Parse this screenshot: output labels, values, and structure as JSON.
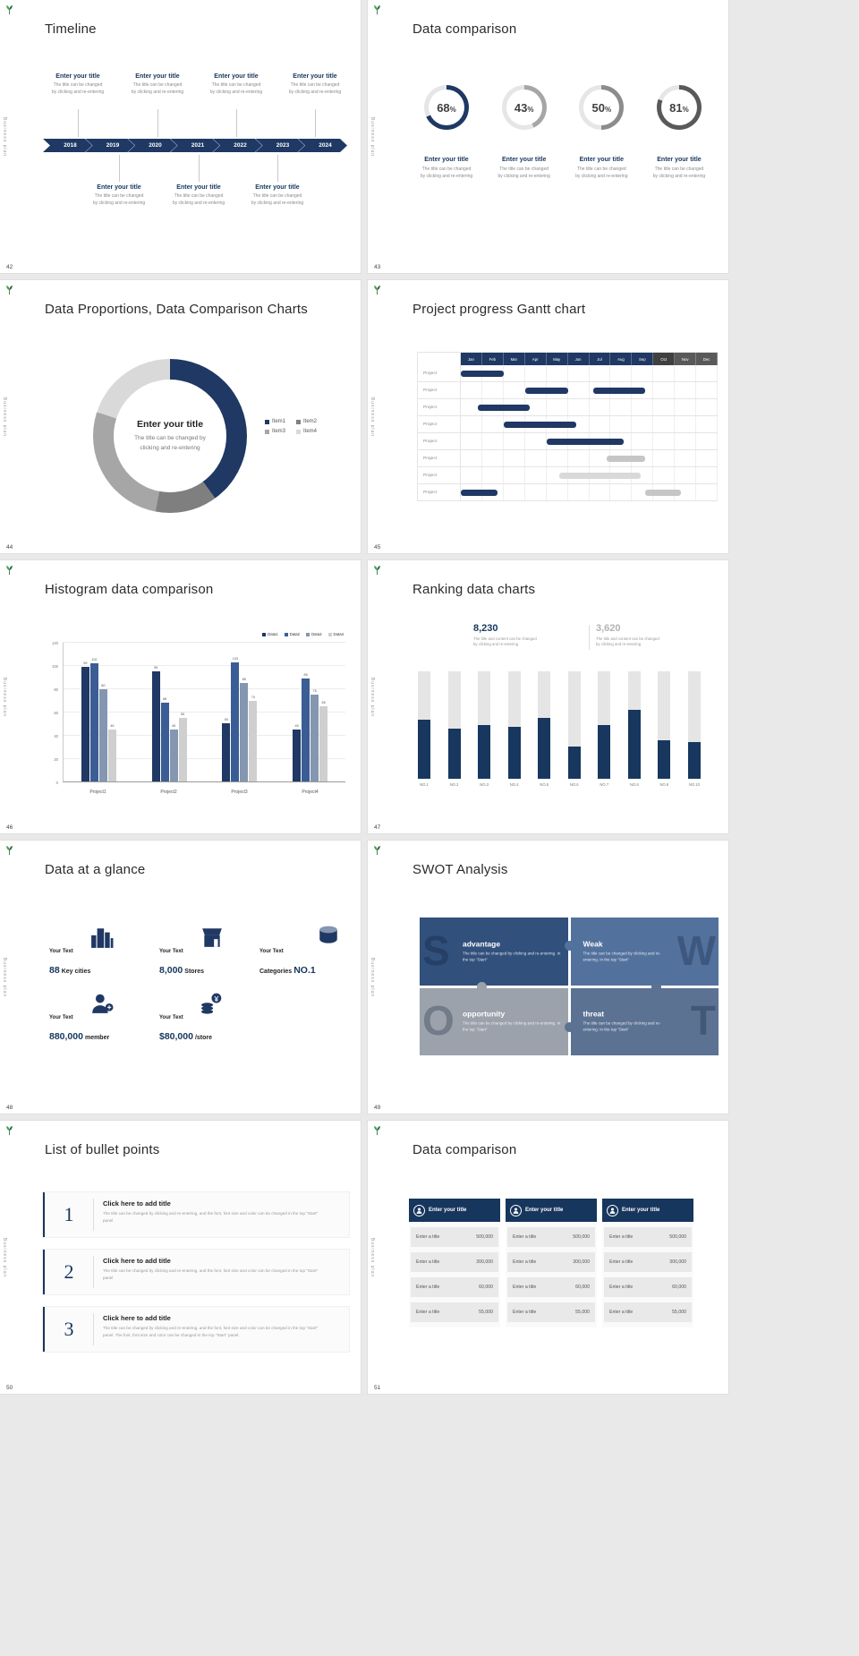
{
  "page": {
    "background_color": "#e9e9e9",
    "accent_color": "#1f3864",
    "brand_vertical_text": "Business plan"
  },
  "slides": [
    {
      "page_number": "42",
      "title": "Timeline",
      "item_title": "Enter your title",
      "item_desc_line1": "The title can be changed",
      "item_desc_line2": "by clicking and re-entering",
      "years": [
        "2018",
        "2019",
        "2020",
        "2021",
        "2022",
        "2023",
        "2024"
      ]
    },
    {
      "page_number": "43",
      "title": "Data comparison",
      "item_title": "Enter your title",
      "item_desc_line1": "The title can be changed",
      "item_desc_line2": "by clicking and re-entering",
      "chart_data": {
        "type": "donut-gauges",
        "values": [
          68,
          43,
          50,
          81
        ],
        "unit": "%",
        "colors": [
          "#1f3864",
          "#a6a6a6",
          "#8c8c8c",
          "#595959"
        ],
        "track_color": "#e6e6e6"
      }
    },
    {
      "page_number": "44",
      "title": "Data Proportions, Data Comparison Charts",
      "center_title": "Enter your title",
      "center_desc_line1": "The title can be changed by",
      "center_desc_line2": "clicking and re-entering",
      "chart_data": {
        "type": "pie",
        "labels": [
          "Item1",
          "Item2",
          "Item3",
          "Item4"
        ],
        "values": [
          40,
          13,
          27,
          20
        ],
        "colors": [
          "#1f3864",
          "#7f7f7f",
          "#a6a6a6",
          "#d9d9d9"
        ]
      }
    },
    {
      "page_number": "45",
      "title": "Project progress Gantt chart",
      "chart_data": {
        "type": "gantt",
        "months": [
          "Jan",
          "Feb",
          "Mar",
          "Apr",
          "May",
          "Jun",
          "Jul",
          "Aug",
          "Sep",
          "Oct",
          "Nov",
          "Dec"
        ],
        "month_colors": [
          "#1f3864",
          "#1f3864",
          "#1f3864",
          "#1f3864",
          "#1f3864",
          "#1f3864",
          "#1f3864",
          "#1f3864",
          "#1f3864",
          "#404040",
          "#595959",
          "#595959"
        ],
        "row_label": "Project",
        "rows": [
          {
            "bars": [
              {
                "start": 0,
                "span": 2,
                "color": "#1f3864"
              }
            ]
          },
          {
            "bars": [
              {
                "start": 3,
                "span": 2,
                "color": "#1f3864"
              },
              {
                "start": 6.2,
                "span": 2.4,
                "color": "#1f3864"
              }
            ]
          },
          {
            "bars": [
              {
                "start": 0.8,
                "span": 2.4,
                "color": "#1f3864"
              }
            ]
          },
          {
            "bars": [
              {
                "start": 2,
                "span": 3.4,
                "color": "#1f3864"
              }
            ]
          },
          {
            "bars": [
              {
                "start": 4,
                "span": 3.6,
                "color": "#1f3864"
              }
            ]
          },
          {
            "bars": [
              {
                "start": 6.8,
                "span": 1.8,
                "color": "#c6c6c6"
              }
            ]
          },
          {
            "bars": [
              {
                "start": 4.6,
                "span": 3.8,
                "color": "#d9d9d9"
              }
            ]
          },
          {
            "bars": [
              {
                "start": 0,
                "span": 1.7,
                "color": "#1f3864"
              },
              {
                "start": 8.6,
                "span": 1.7,
                "color": "#c6c6c6"
              }
            ]
          }
        ]
      }
    },
    {
      "page_number": "46",
      "title": "Histogram data comparison",
      "chart_data": {
        "type": "bar",
        "categories": [
          "Project1",
          "Project2",
          "Project3",
          "Project4"
        ],
        "series": [
          {
            "name": "Data1",
            "color": "#1f3864",
            "values": [
              99,
              95,
              50,
              45
            ]
          },
          {
            "name": "Data2",
            "color": "#3a5d95",
            "values": [
              102,
              68,
              103,
              89
            ]
          },
          {
            "name": "Data3",
            "color": "#8496b0",
            "values": [
              80,
              45,
              85,
              75
            ]
          },
          {
            "name": "Data4",
            "color": "#cfcfcf",
            "values": [
              45,
              55,
              70,
              65
            ]
          }
        ],
        "ylim": [
          0,
          120
        ],
        "ystep": 20
      }
    },
    {
      "page_number": "47",
      "title": "Ranking data charts",
      "stats": [
        {
          "value": "8,230",
          "desc_line1": "The title and content can be changed",
          "desc_line2": "by clicking and re-entering"
        },
        {
          "value": "3,620",
          "desc_line1": "The title and content can be changed",
          "desc_line2": "by clicking and re-entering"
        }
      ],
      "chart_data": {
        "type": "bar",
        "categories": [
          "NO.1",
          "NO.2",
          "NO.3",
          "NO.4",
          "NO.5",
          "NO.6",
          "NO.7",
          "NO.8",
          "NO.9",
          "NO.10"
        ],
        "values": [
          55,
          47,
          50,
          48,
          57,
          30,
          50,
          64,
          36,
          34
        ],
        "ymax": 100,
        "bar_color": "#17375e",
        "track_color": "#e5e5e5"
      }
    },
    {
      "page_number": "48",
      "title": "Data at a glance",
      "stats": [
        {
          "label": "Your Text",
          "value": "88",
          "unit": "Key cities",
          "icon": "city-buildings-icon"
        },
        {
          "label": "Your Text",
          "value": "8,000",
          "unit": "Stores",
          "icon": "store-icon"
        },
        {
          "label": "Your Text",
          "value": "Categories",
          "unit": "NO.1",
          "icon": "category-cylinder-icon"
        },
        {
          "label": "Your Text",
          "value": "880,000",
          "unit": "member",
          "icon": "member-add-icon"
        },
        {
          "label": "Your Text",
          "value": "$80,000",
          "unit": "/store",
          "icon": "coins-icon"
        }
      ]
    },
    {
      "page_number": "49",
      "title": "SWOT Analysis",
      "quads": [
        {
          "letter": "S",
          "title": "advantage",
          "desc": "The title can be changed by clicking and re-entering. In the top \"Start\"",
          "color": "#31507c"
        },
        {
          "letter": "W",
          "title": "Weak",
          "desc": "The title can be changed by clicking and re-entering. In the top \"Start\"",
          "color": "#53719d"
        },
        {
          "letter": "O",
          "title": "opportunity",
          "desc": "The title can be changed by clicking and re-entering. In the top \"Start\"",
          "color": "#9ba2ab"
        },
        {
          "letter": "T",
          "title": "threat",
          "desc": "The title can be changed by clicking and re-entering. In the top \"Start\"",
          "color": "#5b7293"
        }
      ]
    },
    {
      "page_number": "50",
      "title": "List of bullet points",
      "items": [
        {
          "num": "1",
          "title": "Click here to add title",
          "desc": "The title can be changed by clicking and re-entering, and the font, font size and color can be changed in the top \"Start\" panel"
        },
        {
          "num": "2",
          "title": "Click here to add title",
          "desc": "The title can be changed by clicking and re-entering, and the font, font size and color can be changed in the top \"Start\" panel"
        },
        {
          "num": "3",
          "title": "Click here to add title",
          "desc": "The title can be changed by clicking and re-entering, and the font, font size and color can be changed in the top \"Start\" panel. The font, font size and color can be changed in the top \"Start\" panel."
        }
      ]
    },
    {
      "page_number": "51",
      "title": "Data comparison",
      "cards": [
        {
          "header": "Enter your title",
          "rows": [
            [
              "Enter a title",
              "500,000"
            ],
            [
              "Enter a title",
              "300,000"
            ],
            [
              "Enter a title",
              "60,000"
            ],
            [
              "Enter a title",
              "55,000"
            ]
          ]
        },
        {
          "header": "Enter your title",
          "rows": [
            [
              "Enter a title",
              "500,000"
            ],
            [
              "Enter a title",
              "300,000"
            ],
            [
              "Enter a title",
              "60,000"
            ],
            [
              "Enter a title",
              "55,000"
            ]
          ]
        },
        {
          "header": "Enter your title",
          "rows": [
            [
              "Enter a title",
              "500,000"
            ],
            [
              "Enter a title",
              "300,000"
            ],
            [
              "Enter a title",
              "60,000"
            ],
            [
              "Enter a title",
              "55,000"
            ]
          ]
        }
      ]
    }
  ]
}
